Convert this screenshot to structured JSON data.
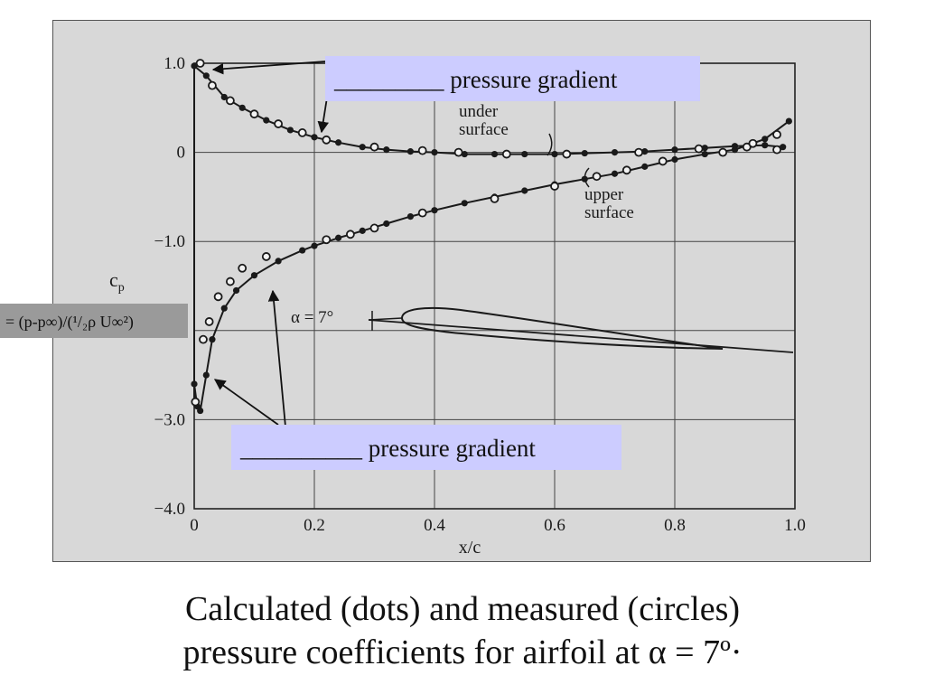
{
  "chart_data": {
    "type": "scatter",
    "xlabel": "x/c",
    "ylabel": "c",
    "ylabel_sub": "p",
    "xlim": [
      0,
      1.0
    ],
    "ylim": [
      -4.0,
      1.0
    ],
    "y_inverted": true,
    "grid": true,
    "x_ticks": [
      0,
      0.2,
      0.4,
      0.6,
      0.8,
      1.0
    ],
    "x_tick_labels": [
      "0",
      "0.2",
      "0.4",
      "0.6",
      "0.8",
      "1.0"
    ],
    "y_ticks": [
      1.0,
      0,
      -1.0,
      -3.0,
      -4.0
    ],
    "y_tick_labels": [
      "1.0",
      "0",
      "−1.0",
      "−3.0",
      "−4.0"
    ],
    "series": [
      {
        "name": "under surface",
        "calculated_dots": [
          [
            0.0,
            0.97
          ],
          [
            0.02,
            0.86
          ],
          [
            0.05,
            0.62
          ],
          [
            0.08,
            0.5
          ],
          [
            0.12,
            0.36
          ],
          [
            0.16,
            0.25
          ],
          [
            0.2,
            0.17
          ],
          [
            0.24,
            0.11
          ],
          [
            0.28,
            0.06
          ],
          [
            0.32,
            0.03
          ],
          [
            0.36,
            0.01
          ],
          [
            0.4,
            0.0
          ],
          [
            0.45,
            -0.02
          ],
          [
            0.5,
            -0.02
          ],
          [
            0.55,
            -0.02
          ],
          [
            0.6,
            -0.02
          ],
          [
            0.65,
            -0.01
          ],
          [
            0.7,
            0.0
          ],
          [
            0.75,
            0.01
          ],
          [
            0.8,
            0.03
          ],
          [
            0.85,
            0.05
          ],
          [
            0.9,
            0.07
          ],
          [
            0.95,
            0.08
          ],
          [
            0.98,
            0.06
          ]
        ],
        "measured_circles": [
          [
            0.01,
            1.0
          ],
          [
            0.03,
            0.75
          ],
          [
            0.06,
            0.58
          ],
          [
            0.1,
            0.43
          ],
          [
            0.14,
            0.32
          ],
          [
            0.18,
            0.22
          ],
          [
            0.22,
            0.14
          ],
          [
            0.3,
            0.06
          ],
          [
            0.38,
            0.02
          ],
          [
            0.44,
            0.0
          ],
          [
            0.52,
            -0.02
          ],
          [
            0.62,
            -0.02
          ],
          [
            0.74,
            0.0
          ],
          [
            0.84,
            0.04
          ],
          [
            0.92,
            0.06
          ],
          [
            0.97,
            0.03
          ]
        ]
      },
      {
        "name": "upper surface",
        "calculated_dots": [
          [
            0.0,
            -2.6
          ],
          [
            0.005,
            -2.85
          ],
          [
            0.01,
            -2.9
          ],
          [
            0.02,
            -2.5
          ],
          [
            0.03,
            -2.1
          ],
          [
            0.05,
            -1.75
          ],
          [
            0.07,
            -1.55
          ],
          [
            0.1,
            -1.38
          ],
          [
            0.14,
            -1.22
          ],
          [
            0.18,
            -1.1
          ],
          [
            0.2,
            -1.05
          ],
          [
            0.24,
            -0.96
          ],
          [
            0.28,
            -0.88
          ],
          [
            0.32,
            -0.8
          ],
          [
            0.36,
            -0.72
          ],
          [
            0.4,
            -0.65
          ],
          [
            0.45,
            -0.57
          ],
          [
            0.5,
            -0.5
          ],
          [
            0.55,
            -0.43
          ],
          [
            0.6,
            -0.36
          ],
          [
            0.65,
            -0.3
          ],
          [
            0.7,
            -0.24
          ],
          [
            0.75,
            -0.16
          ],
          [
            0.8,
            -0.08
          ],
          [
            0.85,
            -0.02
          ],
          [
            0.9,
            0.03
          ],
          [
            0.95,
            0.15
          ],
          [
            0.99,
            0.35
          ]
        ],
        "measured_circles": [
          [
            0.002,
            -2.8
          ],
          [
            0.015,
            -2.1
          ],
          [
            0.025,
            -1.9
          ],
          [
            0.04,
            -1.62
          ],
          [
            0.06,
            -1.45
          ],
          [
            0.08,
            -1.3
          ],
          [
            0.12,
            -1.17
          ],
          [
            0.22,
            -0.98
          ],
          [
            0.26,
            -0.92
          ],
          [
            0.3,
            -0.85
          ],
          [
            0.38,
            -0.68
          ],
          [
            0.5,
            -0.52
          ],
          [
            0.6,
            -0.38
          ],
          [
            0.67,
            -0.27
          ],
          [
            0.72,
            -0.2
          ],
          [
            0.78,
            -0.1
          ],
          [
            0.88,
            0.0
          ],
          [
            0.93,
            0.1
          ],
          [
            0.97,
            0.2
          ]
        ]
      }
    ],
    "annotations": {
      "under_surface": [
        "under",
        "surface"
      ],
      "upper_surface": [
        "upper",
        "surface"
      ],
      "alpha": "α = 7°"
    }
  },
  "callouts": {
    "top": "_________ pressure gradient",
    "bottom": "__________ pressure gradient",
    "cp_definition": "= (p-p∞)/(¹/₂ρ U∞²)"
  },
  "caption": {
    "line1": "Calculated (dots) and measured (circles)",
    "line2": "pressure coefficients for airfoil at α = 7º·"
  },
  "colors": {
    "callout_bg": "#ccccff",
    "cp_box_bg": "#9a9a9a",
    "paper": "#d8d8d8",
    "ink": "#1a1a1a"
  }
}
